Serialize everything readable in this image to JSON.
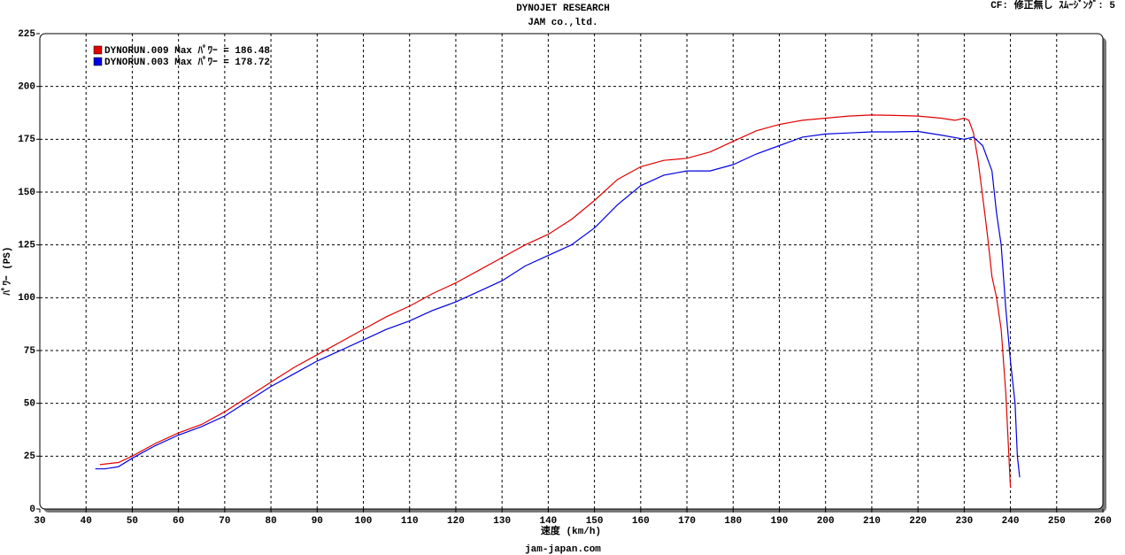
{
  "chart_data": {
    "type": "line",
    "title": "DYNOJET  RESEARCH",
    "subtitle": "JAM co.,ltd.",
    "corner_note": "CF: 修正無し  ｽﾑｰｼﾞﾝｸﾞ: 5",
    "y_label": "ﾊﾟﾜｰ (PS)",
    "x_label": "速度 (km/h)",
    "footer": "jam-japan.com",
    "xlim": [
      30,
      260
    ],
    "ylim": [
      0,
      225
    ],
    "xticks": [
      30,
      40,
      50,
      60,
      70,
      80,
      90,
      100,
      110,
      120,
      130,
      140,
      150,
      160,
      170,
      180,
      190,
      200,
      210,
      220,
      230,
      240,
      250,
      260
    ],
    "yticks": [
      0,
      25,
      50,
      75,
      100,
      125,
      150,
      175,
      200,
      225
    ],
    "grid": true,
    "legend": "top-left",
    "series": [
      {
        "name": "DYNORUN.009 Max ﾊﾟﾜｰ = 186.48",
        "color": "#e00000",
        "x": [
          43,
          47,
          50,
          55,
          60,
          65,
          70,
          75,
          80,
          85,
          90,
          95,
          100,
          105,
          110,
          115,
          120,
          125,
          130,
          135,
          140,
          145,
          150,
          155,
          160,
          165,
          170,
          175,
          180,
          185,
          190,
          195,
          200,
          205,
          210,
          215,
          220,
          225,
          228,
          230,
          231,
          232,
          233,
          234,
          235,
          236,
          237,
          238,
          239,
          240
        ],
        "values": [
          21,
          22,
          25,
          31,
          36,
          40,
          46,
          53,
          60,
          67,
          73,
          79,
          85,
          91,
          96,
          102,
          107,
          113,
          119,
          125,
          130,
          137,
          146,
          156,
          162,
          165,
          166,
          169,
          174,
          179,
          182,
          184,
          185,
          186,
          186.5,
          186.3,
          186,
          185,
          184,
          185,
          184,
          178,
          165,
          148,
          130,
          110,
          100,
          85,
          55,
          10
        ]
      },
      {
        "name": "DYNORUN.003 Max ﾊﾟﾜｰ = 178.72",
        "color": "#0000e0",
        "x": [
          42,
          44,
          47,
          50,
          55,
          60,
          65,
          70,
          75,
          80,
          85,
          90,
          95,
          100,
          105,
          110,
          115,
          120,
          125,
          130,
          135,
          140,
          145,
          150,
          155,
          160,
          165,
          170,
          175,
          180,
          185,
          190,
          195,
          200,
          205,
          210,
          215,
          220,
          225,
          230,
          232,
          234,
          236,
          237,
          238,
          239,
          240,
          241,
          241.5,
          242
        ],
        "values": [
          19,
          19,
          20,
          24,
          30,
          35,
          39,
          44,
          51,
          58,
          64,
          70,
          75,
          80,
          85,
          89,
          94,
          98,
          103,
          108,
          115,
          120,
          125,
          133,
          144,
          153,
          158,
          160,
          160,
          163,
          168,
          172,
          176,
          177.5,
          178,
          178.5,
          178.5,
          178.7,
          177,
          175,
          176,
          172,
          160,
          140,
          125,
          95,
          70,
          50,
          25,
          15
        ]
      }
    ]
  }
}
